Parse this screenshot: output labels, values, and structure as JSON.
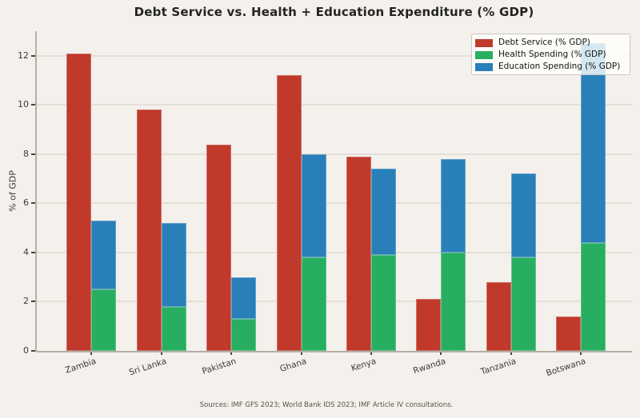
{
  "title": "Debt Service vs. Health + Education Expenditure (% GDP)",
  "y_axis_label": "% of GDP",
  "source_note": "Sources: IMF GFS 2023; World Bank IDS 2023; IMF Article IV consultations.",
  "colors": {
    "background": "#f4f0eb",
    "debt_service": "#c0392b",
    "health_spending": "#27ae60",
    "education_spending": "#2980b9",
    "gridline": "#e3dfd8",
    "spine": "#b3aea6"
  },
  "legend": {
    "position": "upper right",
    "items": [
      {
        "label": "Debt Service (% GDP)",
        "color": "#c0392b"
      },
      {
        "label": "Health Spending (% GDP)",
        "color": "#27ae60"
      },
      {
        "label": "Education Spending (% GDP)",
        "color": "#2980b9"
      }
    ]
  },
  "chart_data": {
    "type": "bar",
    "title": "Debt Service vs. Health + Education Expenditure (% GDP)",
    "xlabel": "",
    "ylabel": "% of GDP",
    "categories": [
      "Zambia",
      "Sri Lanka",
      "Pakistan",
      "Ghana",
      "Kenya",
      "Rwanda",
      "Tanzania",
      "Botswana"
    ],
    "series": [
      {
        "name": "Debt Service (% GDP)",
        "stack": "debt",
        "color": "#c0392b",
        "values": [
          12.1,
          9.8,
          8.4,
          11.2,
          7.9,
          2.1,
          2.8,
          1.4
        ]
      },
      {
        "name": "Health Spending (% GDP)",
        "stack": "social",
        "color": "#27ae60",
        "values": [
          2.5,
          1.8,
          1.3,
          3.8,
          3.9,
          4.0,
          3.8,
          4.4
        ]
      },
      {
        "name": "Education Spending (% GDP)",
        "stack": "social",
        "color": "#2980b9",
        "values": [
          2.8,
          3.4,
          1.7,
          4.2,
          3.5,
          3.8,
          3.4,
          8.1
        ]
      }
    ],
    "social_stack_totals": [
      5.3,
      5.2,
      3.0,
      8.0,
      7.4,
      7.8,
      7.2,
      12.5
    ],
    "yticks": [
      0,
      2,
      4,
      6,
      8,
      10,
      12
    ],
    "ylim": [
      0,
      13
    ],
    "grid": true,
    "legend_position": "upper right",
    "bar_arrangement": "per category: debt-service bar on the left, stacked health+education bar on the right"
  }
}
